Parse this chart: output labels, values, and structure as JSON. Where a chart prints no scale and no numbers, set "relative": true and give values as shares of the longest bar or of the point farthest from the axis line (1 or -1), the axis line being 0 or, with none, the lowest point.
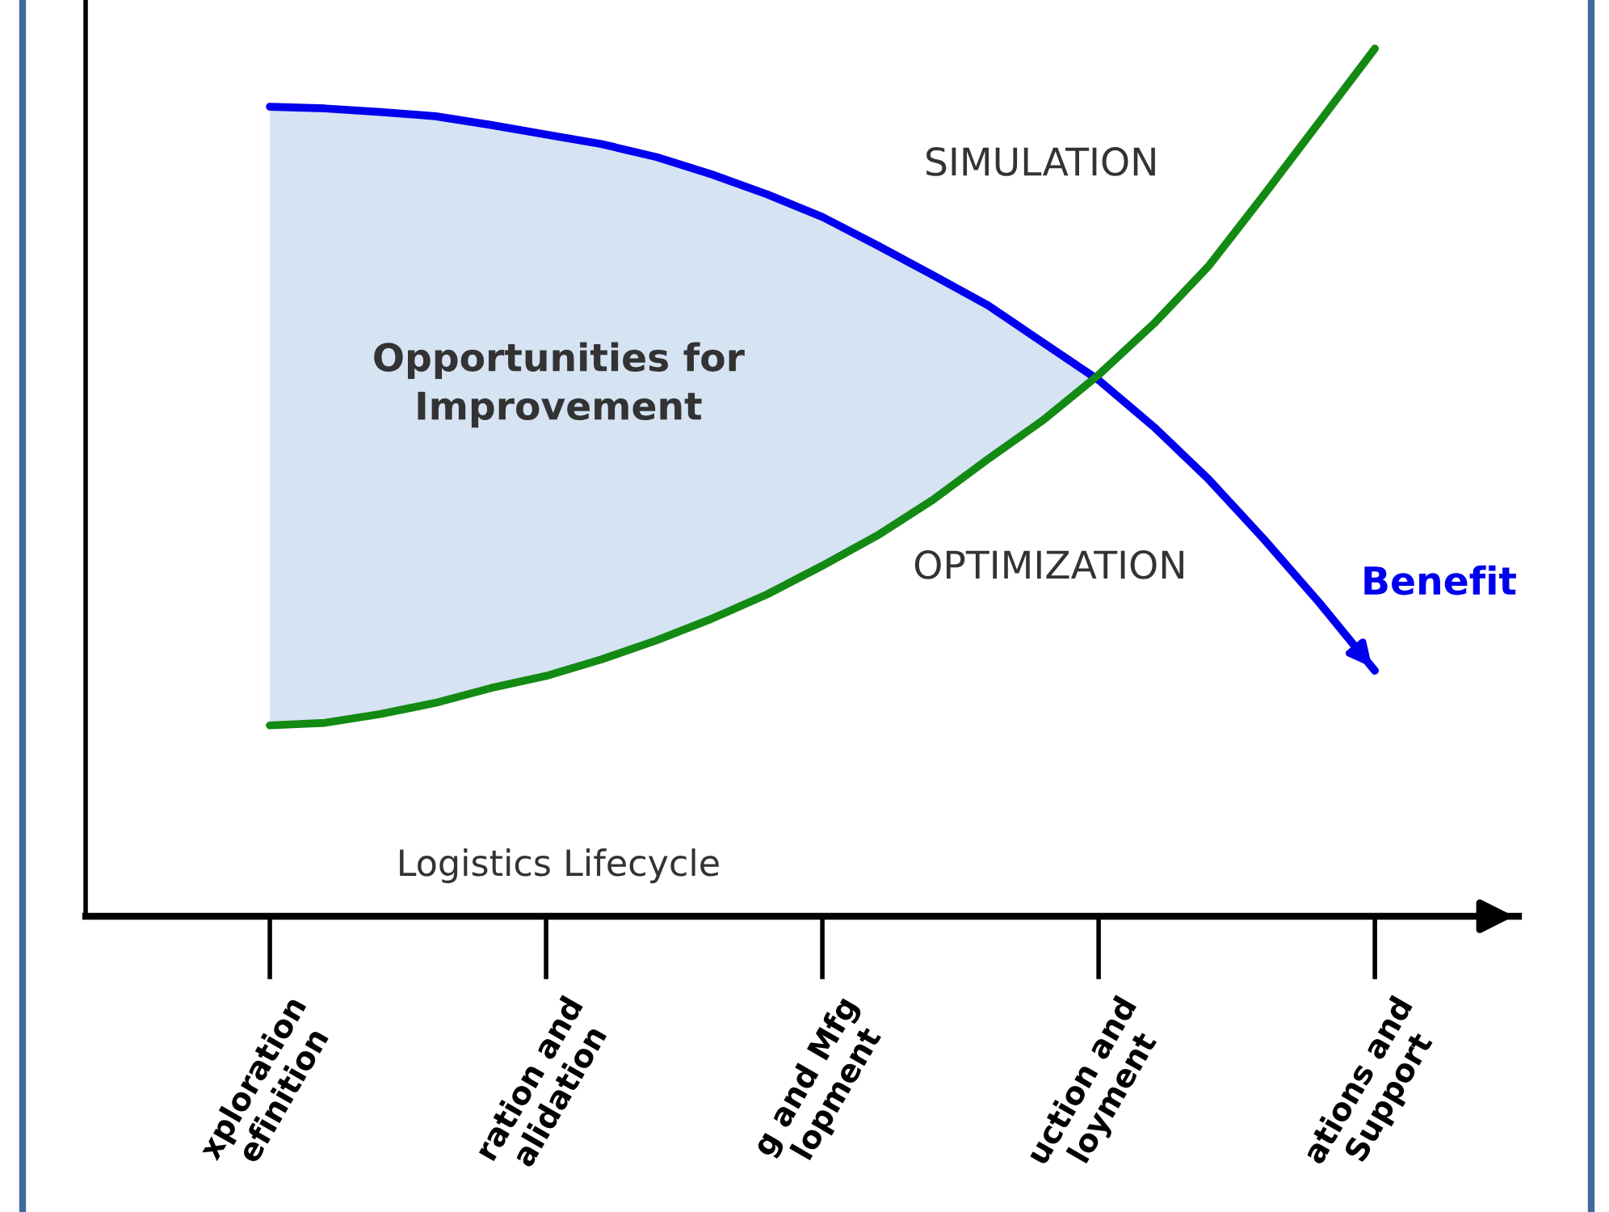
{
  "chart_data": {
    "type": "line",
    "relative": true,
    "xlabel": "Logistics Lifecycle",
    "categories": [
      "xploration efinition",
      null,
      null,
      null,
      null,
      "ration and alidation",
      null,
      null,
      null,
      null,
      "g and Mfg lopment",
      null,
      null,
      null,
      null,
      "uction and loyment",
      null,
      null,
      null,
      null,
      "ations and Support"
    ],
    "series": [
      {
        "name": "Benefit",
        "color": "#0000ee",
        "values": [
          0.933,
          0.931,
          0.927,
          0.922,
          0.912,
          0.901,
          0.89,
          0.875,
          0.855,
          0.832,
          0.806,
          0.773,
          0.739,
          0.704,
          0.661,
          0.618,
          0.564,
          0.503,
          0.434,
          0.361,
          0.283
        ]
      },
      {
        "color": "#138a13",
        "values": [
          0.22,
          0.223,
          0.233,
          0.246,
          0.263,
          0.277,
          0.296,
          0.318,
          0.343,
          0.371,
          0.404,
          0.439,
          0.48,
          0.527,
          0.572,
          0.624,
          0.683,
          0.75,
          0.832,
          0.916,
          1.0
        ]
      }
    ],
    "annotations": [
      "SIMULATION",
      "OPTIMIZATION",
      "Opportunities for\nImprovement"
    ],
    "grid": false,
    "legend": false,
    "marker": "none",
    "line_style": "solid"
  }
}
